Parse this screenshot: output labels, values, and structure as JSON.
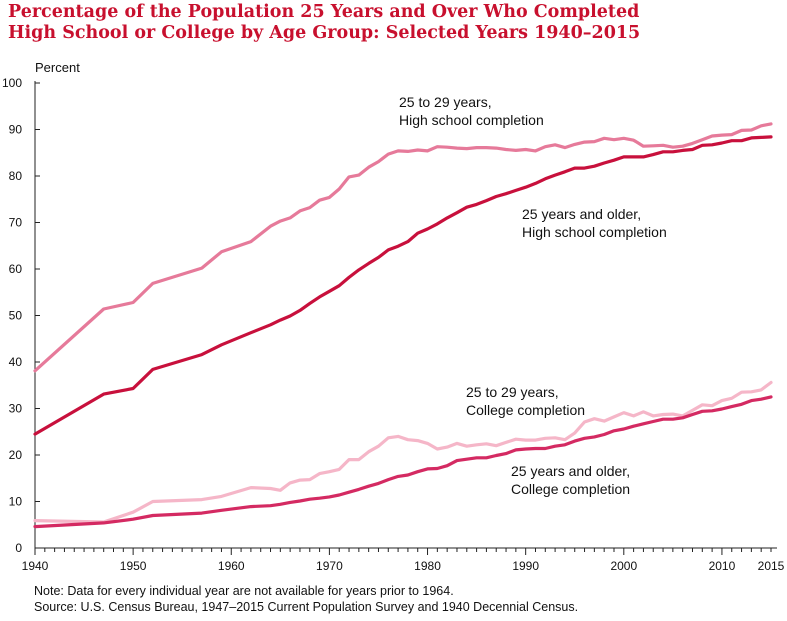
{
  "chart_data": {
    "type": "line",
    "title": [
      "Percentage of the Population 25 Years and Over Who Completed",
      "High School or College by Age Group: Selected Years 1940–2015"
    ],
    "ylabel": "Percent",
    "xlabel": "",
    "ylim": [
      0,
      100
    ],
    "xlim": [
      1940,
      2015
    ],
    "yticks": [
      0,
      10,
      20,
      30,
      40,
      50,
      60,
      70,
      80,
      90,
      100
    ],
    "xticks": [
      1940,
      1950,
      1960,
      1970,
      1980,
      1990,
      2000,
      2010,
      2015
    ],
    "grid": false,
    "series": [
      {
        "name": "25 to 29 years, High school completion",
        "label_lines": [
          "25 to 29 years,",
          "High school completion"
        ],
        "color": "#e67a9a",
        "points": [
          [
            1940,
            38.1
          ],
          [
            1947,
            51.4
          ],
          [
            1950,
            52.8
          ],
          [
            1952,
            56.9
          ],
          [
            1957,
            60.2
          ],
          [
            1959,
            63.7
          ],
          [
            1962,
            65.9
          ],
          [
            1964,
            69.2
          ],
          [
            1965,
            70.3
          ],
          [
            1966,
            71.0
          ],
          [
            1967,
            72.5
          ],
          [
            1968,
            73.2
          ],
          [
            1969,
            74.8
          ],
          [
            1970,
            75.4
          ],
          [
            1971,
            77.2
          ],
          [
            1972,
            79.8
          ],
          [
            1973,
            80.2
          ],
          [
            1974,
            81.9
          ],
          [
            1975,
            83.1
          ],
          [
            1976,
            84.7
          ],
          [
            1977,
            85.4
          ],
          [
            1978,
            85.3
          ],
          [
            1979,
            85.6
          ],
          [
            1980,
            85.4
          ],
          [
            1981,
            86.3
          ],
          [
            1982,
            86.2
          ],
          [
            1983,
            86.0
          ],
          [
            1984,
            85.9
          ],
          [
            1985,
            86.1
          ],
          [
            1986,
            86.1
          ],
          [
            1987,
            86.0
          ],
          [
            1988,
            85.7
          ],
          [
            1989,
            85.5
          ],
          [
            1990,
            85.7
          ],
          [
            1991,
            85.4
          ],
          [
            1992,
            86.3
          ],
          [
            1993,
            86.7
          ],
          [
            1994,
            86.1
          ],
          [
            1995,
            86.8
          ],
          [
            1996,
            87.3
          ],
          [
            1997,
            87.4
          ],
          [
            1998,
            88.1
          ],
          [
            1999,
            87.8
          ],
          [
            2000,
            88.1
          ],
          [
            2001,
            87.7
          ],
          [
            2002,
            86.4
          ],
          [
            2003,
            86.5
          ],
          [
            2004,
            86.6
          ],
          [
            2005,
            86.2
          ],
          [
            2006,
            86.4
          ],
          [
            2007,
            87.0
          ],
          [
            2008,
            87.8
          ],
          [
            2009,
            88.6
          ],
          [
            2010,
            88.8
          ],
          [
            2011,
            88.9
          ],
          [
            2012,
            89.8
          ],
          [
            2013,
            89.9
          ],
          [
            2014,
            90.8
          ],
          [
            2015,
            91.2
          ]
        ]
      },
      {
        "name": "25 years and older, High school completion",
        "label_lines": [
          "25 years and older,",
          "High school completion"
        ],
        "color": "#c8103c",
        "points": [
          [
            1940,
            24.5
          ],
          [
            1947,
            33.1
          ],
          [
            1950,
            34.3
          ],
          [
            1952,
            38.4
          ],
          [
            1957,
            41.6
          ],
          [
            1959,
            43.7
          ],
          [
            1962,
            46.3
          ],
          [
            1964,
            48.0
          ],
          [
            1965,
            49.0
          ],
          [
            1966,
            49.9
          ],
          [
            1967,
            51.1
          ],
          [
            1968,
            52.6
          ],
          [
            1969,
            54.0
          ],
          [
            1970,
            55.2
          ],
          [
            1971,
            56.4
          ],
          [
            1972,
            58.2
          ],
          [
            1973,
            59.8
          ],
          [
            1974,
            61.2
          ],
          [
            1975,
            62.5
          ],
          [
            1976,
            64.1
          ],
          [
            1977,
            64.9
          ],
          [
            1978,
            65.9
          ],
          [
            1979,
            67.7
          ],
          [
            1980,
            68.6
          ],
          [
            1981,
            69.7
          ],
          [
            1982,
            71.0
          ],
          [
            1983,
            72.1
          ],
          [
            1984,
            73.3
          ],
          [
            1985,
            73.9
          ],
          [
            1986,
            74.7
          ],
          [
            1987,
            75.6
          ],
          [
            1988,
            76.2
          ],
          [
            1989,
            76.9
          ],
          [
            1990,
            77.6
          ],
          [
            1991,
            78.4
          ],
          [
            1992,
            79.4
          ],
          [
            1993,
            80.2
          ],
          [
            1994,
            80.9
          ],
          [
            1995,
            81.7
          ],
          [
            1996,
            81.7
          ],
          [
            1997,
            82.1
          ],
          [
            1998,
            82.8
          ],
          [
            1999,
            83.4
          ],
          [
            2000,
            84.1
          ],
          [
            2001,
            84.1
          ],
          [
            2002,
            84.1
          ],
          [
            2003,
            84.6
          ],
          [
            2004,
            85.2
          ],
          [
            2005,
            85.2
          ],
          [
            2006,
            85.5
          ],
          [
            2007,
            85.7
          ],
          [
            2008,
            86.6
          ],
          [
            2009,
            86.7
          ],
          [
            2010,
            87.1
          ],
          [
            2011,
            87.6
          ],
          [
            2012,
            87.6
          ],
          [
            2013,
            88.2
          ],
          [
            2014,
            88.3
          ],
          [
            2015,
            88.4
          ]
        ]
      },
      {
        "name": "25 to 29 years, College completion",
        "label_lines": [
          "25 to 29 years,",
          "College completion"
        ],
        "color": "#f5b6c8",
        "points": [
          [
            1940,
            5.9
          ],
          [
            1947,
            5.6
          ],
          [
            1950,
            7.7
          ],
          [
            1952,
            10.0
          ],
          [
            1957,
            10.4
          ],
          [
            1959,
            11.1
          ],
          [
            1962,
            13.0
          ],
          [
            1964,
            12.8
          ],
          [
            1965,
            12.4
          ],
          [
            1966,
            14.0
          ],
          [
            1967,
            14.6
          ],
          [
            1968,
            14.7
          ],
          [
            1969,
            16.0
          ],
          [
            1970,
            16.4
          ],
          [
            1971,
            16.9
          ],
          [
            1972,
            19.0
          ],
          [
            1973,
            19.0
          ],
          [
            1974,
            20.7
          ],
          [
            1975,
            21.9
          ],
          [
            1976,
            23.7
          ],
          [
            1977,
            24.0
          ],
          [
            1978,
            23.3
          ],
          [
            1979,
            23.1
          ],
          [
            1980,
            22.5
          ],
          [
            1981,
            21.3
          ],
          [
            1982,
            21.7
          ],
          [
            1983,
            22.5
          ],
          [
            1984,
            21.9
          ],
          [
            1985,
            22.2
          ],
          [
            1986,
            22.4
          ],
          [
            1987,
            22.0
          ],
          [
            1988,
            22.7
          ],
          [
            1989,
            23.4
          ],
          [
            1990,
            23.2
          ],
          [
            1991,
            23.2
          ],
          [
            1992,
            23.6
          ],
          [
            1993,
            23.7
          ],
          [
            1994,
            23.3
          ],
          [
            1995,
            24.7
          ],
          [
            1996,
            27.1
          ],
          [
            1997,
            27.8
          ],
          [
            1998,
            27.3
          ],
          [
            1999,
            28.2
          ],
          [
            2000,
            29.1
          ],
          [
            2001,
            28.4
          ],
          [
            2002,
            29.3
          ],
          [
            2003,
            28.4
          ],
          [
            2004,
            28.7
          ],
          [
            2005,
            28.8
          ],
          [
            2006,
            28.4
          ],
          [
            2007,
            29.6
          ],
          [
            2008,
            30.8
          ],
          [
            2009,
            30.6
          ],
          [
            2010,
            31.7
          ],
          [
            2011,
            32.2
          ],
          [
            2012,
            33.5
          ],
          [
            2013,
            33.6
          ],
          [
            2014,
            34.0
          ],
          [
            2015,
            35.6
          ]
        ]
      },
      {
        "name": "25 years and older, College completion",
        "label_lines": [
          "25 years and older,",
          "College completion"
        ],
        "color": "#d42a62",
        "points": [
          [
            1940,
            4.6
          ],
          [
            1947,
            5.4
          ],
          [
            1950,
            6.2
          ],
          [
            1952,
            7.0
          ],
          [
            1957,
            7.5
          ],
          [
            1959,
            8.1
          ],
          [
            1962,
            8.9
          ],
          [
            1964,
            9.1
          ],
          [
            1965,
            9.4
          ],
          [
            1966,
            9.8
          ],
          [
            1967,
            10.1
          ],
          [
            1968,
            10.5
          ],
          [
            1969,
            10.7
          ],
          [
            1970,
            11.0
          ],
          [
            1971,
            11.4
          ],
          [
            1972,
            12.0
          ],
          [
            1973,
            12.6
          ],
          [
            1974,
            13.3
          ],
          [
            1975,
            13.9
          ],
          [
            1976,
            14.7
          ],
          [
            1977,
            15.4
          ],
          [
            1978,
            15.7
          ],
          [
            1979,
            16.4
          ],
          [
            1980,
            17.0
          ],
          [
            1981,
            17.1
          ],
          [
            1982,
            17.7
          ],
          [
            1983,
            18.8
          ],
          [
            1984,
            19.1
          ],
          [
            1985,
            19.4
          ],
          [
            1986,
            19.4
          ],
          [
            1987,
            19.9
          ],
          [
            1988,
            20.3
          ],
          [
            1989,
            21.1
          ],
          [
            1990,
            21.3
          ],
          [
            1991,
            21.4
          ],
          [
            1992,
            21.4
          ],
          [
            1993,
            21.9
          ],
          [
            1994,
            22.2
          ],
          [
            1995,
            23.0
          ],
          [
            1996,
            23.6
          ],
          [
            1997,
            23.9
          ],
          [
            1998,
            24.4
          ],
          [
            1999,
            25.2
          ],
          [
            2000,
            25.6
          ],
          [
            2001,
            26.2
          ],
          [
            2002,
            26.7
          ],
          [
            2003,
            27.2
          ],
          [
            2004,
            27.7
          ],
          [
            2005,
            27.7
          ],
          [
            2006,
            28.0
          ],
          [
            2007,
            28.7
          ],
          [
            2008,
            29.4
          ],
          [
            2009,
            29.5
          ],
          [
            2010,
            29.9
          ],
          [
            2011,
            30.4
          ],
          [
            2012,
            30.9
          ],
          [
            2013,
            31.7
          ],
          [
            2014,
            32.0
          ],
          [
            2015,
            32.5
          ]
        ]
      }
    ]
  },
  "footnotes": {
    "note": "Note: Data for every individual year are not available for years prior to 1964.",
    "source": "Source: U.S. Census Bureau, 1947–2015 Current Population Survey and 1940 Decennial Census."
  }
}
